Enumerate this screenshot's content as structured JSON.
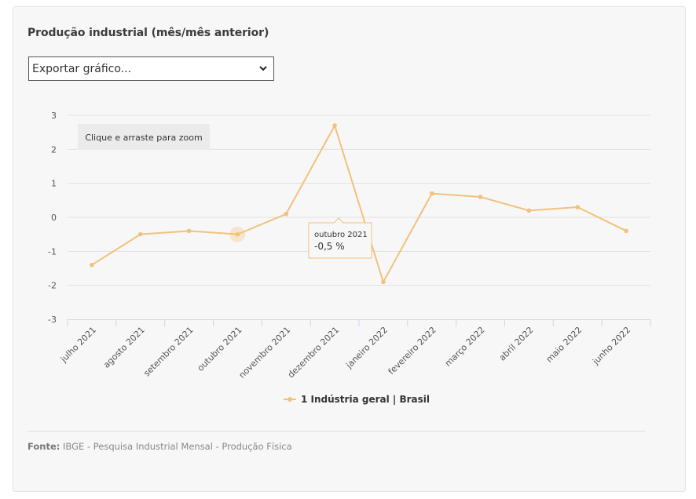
{
  "title": "Produção industrial (mês/mês anterior)",
  "export_select": {
    "value": "Exportar gráfico..."
  },
  "zoom_hint": "Clique e arraste para zoom",
  "tooltip": {
    "label": "outubro 2021",
    "value": "-0,5 %"
  },
  "source": {
    "label": "Fonte:",
    "text": "IBGE - Pesquisa Industrial Mensal - Produção Física"
  },
  "colors": {
    "series": "#f0c27b",
    "accent_card": "#f7f7f7"
  },
  "chart_data": {
    "type": "line",
    "categories": [
      "julho 2021",
      "agosto 2021",
      "setembro 2021",
      "outubro 2021",
      "novembro 2021",
      "dezembro 2021",
      "janeiro 2022",
      "fevereiro 2022",
      "março 2022",
      "abril 2022",
      "maio 2022",
      "junho 2022"
    ],
    "series": [
      {
        "name": "1 Indústria geral | Brasil",
        "values": [
          -1.4,
          -0.5,
          -0.4,
          -0.5,
          0.1,
          2.7,
          -1.9,
          0.7,
          0.6,
          0.2,
          0.3,
          -0.4
        ]
      }
    ],
    "yticks": [
      "3",
      "2",
      "1",
      "0",
      "-1",
      "-2",
      "-3"
    ],
    "ylim": [
      -3,
      3
    ],
    "grid": true,
    "legend": "bottom-center",
    "highlighted_category": "outubro 2021"
  }
}
